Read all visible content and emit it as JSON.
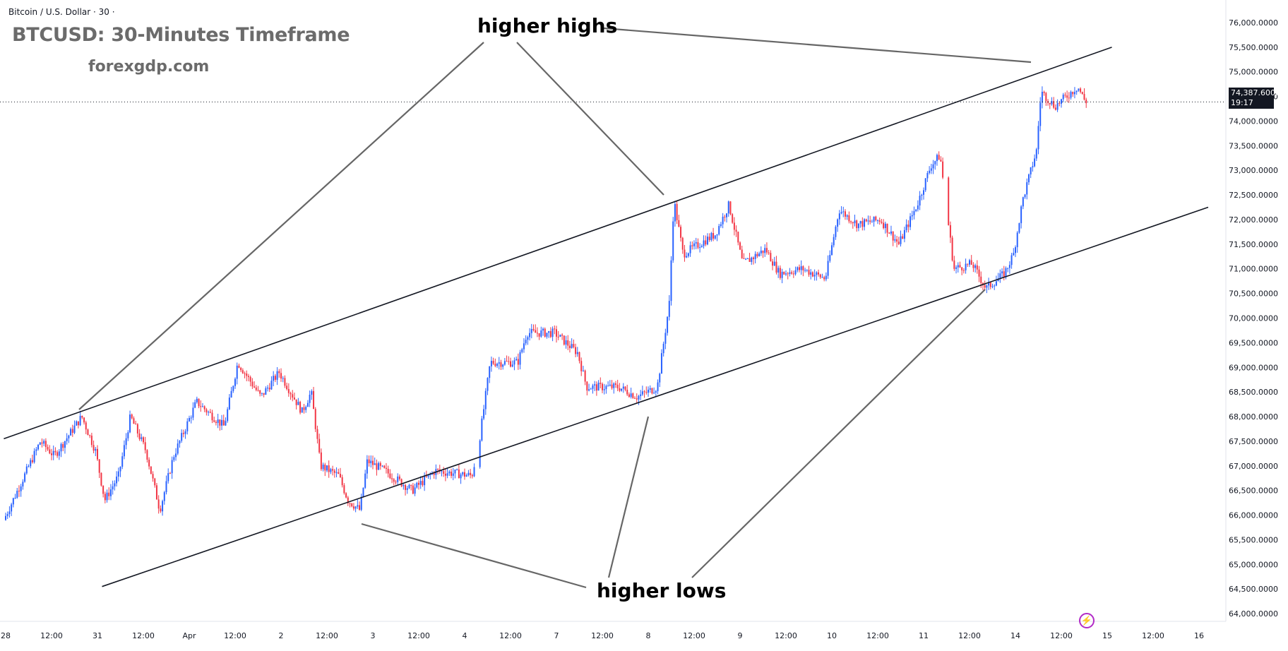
{
  "header": {
    "symbol": "Bitcoin / U.S. Dollar · 30 ·",
    "title": "BTCUSD: 30-Minutes Timeframe",
    "site": "forexgdp.com"
  },
  "annotations": {
    "higher_highs": "higher highs",
    "higher_lows": "higher lows"
  },
  "last_price": {
    "value": "74,387.6000",
    "countdown": "19:17"
  },
  "icons": {
    "bolt": "lightning-icon"
  },
  "colors": {
    "up": "#2962ff",
    "down": "#f23645",
    "lines": "#000000",
    "arrows": "#666666"
  },
  "chart_data": {
    "type": "candlestick",
    "y_unit": "USD",
    "ylim": [
      63800,
      76200
    ],
    "yticks": [
      "76,000.0000",
      "75,500.0000",
      "75,000.0000",
      "74,500.0000",
      "74,000.0000",
      "73,500.0000",
      "73,000.0000",
      "72,500.0000",
      "72,000.0000",
      "71,500.0000",
      "71,000.0000",
      "70,500.0000",
      "70,000.0000",
      "69,500.0000",
      "69,000.0000",
      "68,500.0000",
      "68,000.0000",
      "67,500.0000",
      "67,000.0000",
      "66,500.0000",
      "66,000.0000",
      "65,500.0000",
      "65,000.0000",
      "64,500.0000",
      "64,000.0000"
    ],
    "xticks": [
      "28",
      "12:00",
      "31",
      "12:00",
      "Apr",
      "12:00",
      "2",
      "12:00",
      "3",
      "12:00",
      "4",
      "12:00",
      "7",
      "12:00",
      "8",
      "12:00",
      "9",
      "12:00",
      "10",
      "12:00",
      "11",
      "12:00",
      "14",
      "12:00",
      "15",
      "12:00",
      "16"
    ],
    "price_path": [
      {
        "t": 0.0,
        "p": 65900
      },
      {
        "t": 0.4,
        "p": 67500
      },
      {
        "t": 0.55,
        "p": 67200
      },
      {
        "t": 0.85,
        "p": 68000
      },
      {
        "t": 1.0,
        "p": 67300
      },
      {
        "t": 1.1,
        "p": 66300
      },
      {
        "t": 1.25,
        "p": 66800
      },
      {
        "t": 1.38,
        "p": 68000
      },
      {
        "t": 1.55,
        "p": 67300
      },
      {
        "t": 1.7,
        "p": 66100
      },
      {
        "t": 1.85,
        "p": 67200
      },
      {
        "t": 2.1,
        "p": 68300
      },
      {
        "t": 2.4,
        "p": 67800
      },
      {
        "t": 2.55,
        "p": 69100
      },
      {
        "t": 2.8,
        "p": 68400
      },
      {
        "t": 3.0,
        "p": 68900
      },
      {
        "t": 3.25,
        "p": 68100
      },
      {
        "t": 3.35,
        "p": 68500
      },
      {
        "t": 3.45,
        "p": 67000
      },
      {
        "t": 3.65,
        "p": 66800
      },
      {
        "t": 3.75,
        "p": 66300
      },
      {
        "t": 3.88,
        "p": 66100
      },
      {
        "t": 3.96,
        "p": 67100
      },
      {
        "t": 4.15,
        "p": 66900
      },
      {
        "t": 4.45,
        "p": 66500
      },
      {
        "t": 4.7,
        "p": 66900
      },
      {
        "t": 5.1,
        "p": 66800
      },
      {
        "t": 5.18,
        "p": 67500
      },
      {
        "t": 5.3,
        "p": 69100
      },
      {
        "t": 5.6,
        "p": 69100
      },
      {
        "t": 5.7,
        "p": 69700
      },
      {
        "t": 6.0,
        "p": 69700
      },
      {
        "t": 6.25,
        "p": 69300
      },
      {
        "t": 6.35,
        "p": 68600
      },
      {
        "t": 6.7,
        "p": 68600
      },
      {
        "t": 6.9,
        "p": 68400
      },
      {
        "t": 7.12,
        "p": 68600
      },
      {
        "t": 7.25,
        "p": 70300
      },
      {
        "t": 7.3,
        "p": 72400
      },
      {
        "t": 7.4,
        "p": 71300
      },
      {
        "t": 7.75,
        "p": 71700
      },
      {
        "t": 7.9,
        "p": 72300
      },
      {
        "t": 8.05,
        "p": 71100
      },
      {
        "t": 8.3,
        "p": 71400
      },
      {
        "t": 8.45,
        "p": 70900
      },
      {
        "t": 8.7,
        "p": 71000
      },
      {
        "t": 8.95,
        "p": 70800
      },
      {
        "t": 9.1,
        "p": 72200
      },
      {
        "t": 9.3,
        "p": 71900
      },
      {
        "t": 9.55,
        "p": 72000
      },
      {
        "t": 9.75,
        "p": 71500
      },
      {
        "t": 9.95,
        "p": 72300
      },
      {
        "t": 10.1,
        "p": 73100
      },
      {
        "t": 10.2,
        "p": 73300
      },
      {
        "t": 10.35,
        "p": 71000
      },
      {
        "t": 10.55,
        "p": 71100
      },
      {
        "t": 10.7,
        "p": 70600
      },
      {
        "t": 10.9,
        "p": 70900
      },
      {
        "t": 11.0,
        "p": 71300
      },
      {
        "t": 11.1,
        "p": 72400
      },
      {
        "t": 11.25,
        "p": 73400
      },
      {
        "t": 11.3,
        "p": 74600
      },
      {
        "t": 11.45,
        "p": 74300
      },
      {
        "t": 11.7,
        "p": 74700
      },
      {
        "t": 11.78,
        "p": 74400
      }
    ],
    "gaps_after_t": [
      5.1,
      10.2
    ],
    "channel_upper": [
      {
        "t": -0.02,
        "p": 67550
      },
      {
        "t": 12.05,
        "p": 75500
      }
    ],
    "channel_lower": [
      {
        "t": 1.05,
        "p": 64550
      },
      {
        "t": 13.1,
        "p": 72250
      }
    ],
    "last_price": 74387.6
  }
}
